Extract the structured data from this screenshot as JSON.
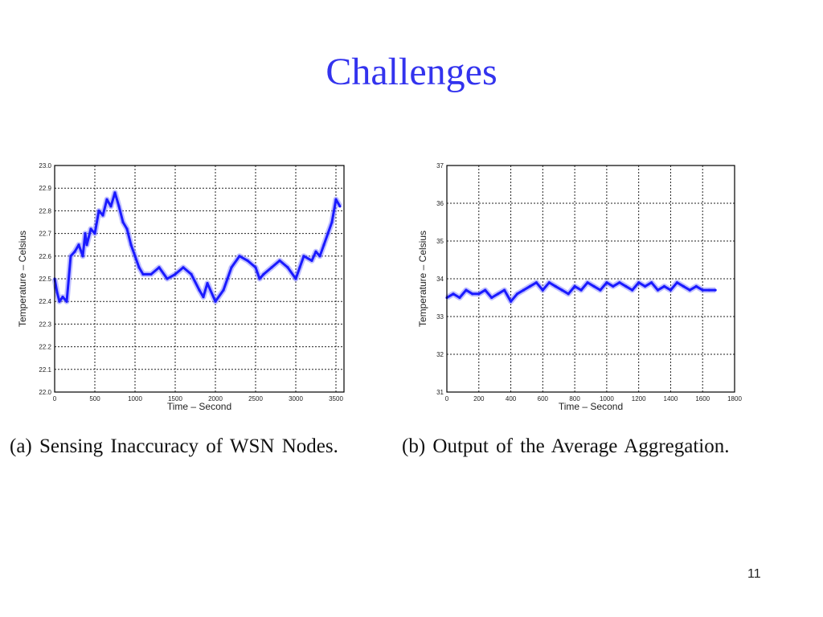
{
  "slide": {
    "title": "Challenges",
    "page_number": "11",
    "title_color": "#3333ee",
    "line_color": "#1a1aff",
    "light_line_color": "#8c8cff"
  },
  "chart_data": [
    {
      "type": "line",
      "caption": "(a) Sensing Inaccuracy of WSN Nodes.",
      "xlabel": "Time – Second",
      "ylabel": "Temperature – Celsius",
      "xlim": [
        0,
        3600
      ],
      "ylim": [
        22,
        23
      ],
      "xticks": [
        0,
        500,
        1000,
        1500,
        2000,
        2500,
        3000,
        3500
      ],
      "yticks": [
        22,
        22.1,
        22.2,
        22.3,
        22.4,
        22.5,
        22.6,
        22.7,
        22.8,
        22.9,
        23
      ],
      "grid": true,
      "series": [
        {
          "x": [
            0,
            30,
            60,
            100,
            150,
            200,
            250,
            300,
            350,
            380,
            400,
            450,
            500,
            550,
            600,
            650,
            700,
            750,
            800,
            850,
            900,
            950,
            1000,
            1050,
            1100,
            1200,
            1300,
            1400,
            1500,
            1600,
            1700,
            1800,
            1850,
            1900,
            2000,
            2100,
            2150,
            2200,
            2300,
            2400,
            2500,
            2550,
            2600,
            2700,
            2800,
            2900,
            3000,
            3050,
            3100,
            3200,
            3250,
            3300,
            3350,
            3400,
            3450,
            3500,
            3550
          ],
          "y": [
            22.5,
            22.44,
            22.4,
            22.42,
            22.4,
            22.6,
            22.62,
            22.65,
            22.6,
            22.7,
            22.65,
            22.72,
            22.7,
            22.8,
            22.78,
            22.85,
            22.82,
            22.88,
            22.82,
            22.75,
            22.72,
            22.65,
            22.6,
            22.55,
            22.52,
            22.52,
            22.55,
            22.5,
            22.52,
            22.55,
            22.52,
            22.45,
            22.42,
            22.48,
            22.4,
            22.45,
            22.5,
            22.55,
            22.6,
            22.58,
            22.55,
            22.5,
            22.52,
            22.55,
            22.58,
            22.55,
            22.5,
            22.55,
            22.6,
            22.58,
            22.62,
            22.6,
            22.65,
            22.7,
            22.75,
            22.85,
            22.82
          ]
        }
      ]
    },
    {
      "type": "line",
      "caption": "(b) Output of the Average Aggregation.",
      "xlabel": "Time – Second",
      "ylabel": "Temperature – Celsius",
      "xlim": [
        0,
        1800
      ],
      "ylim": [
        31,
        37
      ],
      "xticks": [
        0,
        200,
        400,
        600,
        800,
        1000,
        1200,
        1400,
        1600,
        1800
      ],
      "yticks": [
        31,
        32,
        33,
        34,
        35,
        36,
        37
      ],
      "grid": true,
      "series": [
        {
          "x": [
            0,
            40,
            80,
            120,
            160,
            200,
            240,
            280,
            320,
            360,
            400,
            440,
            480,
            520,
            560,
            600,
            640,
            680,
            720,
            760,
            800,
            840,
            880,
            920,
            960,
            1000,
            1040,
            1080,
            1120,
            1160,
            1200,
            1240,
            1280,
            1320,
            1360,
            1400,
            1440,
            1480,
            1520,
            1560,
            1600,
            1640,
            1680
          ],
          "y": [
            33.5,
            33.6,
            33.5,
            33.7,
            33.6,
            33.6,
            33.7,
            33.5,
            33.6,
            33.7,
            33.4,
            33.6,
            33.7,
            33.8,
            33.9,
            33.7,
            33.9,
            33.8,
            33.7,
            33.6,
            33.8,
            33.7,
            33.9,
            33.8,
            33.7,
            33.9,
            33.8,
            33.9,
            33.8,
            33.7,
            33.9,
            33.8,
            33.9,
            33.7,
            33.8,
            33.7,
            33.9,
            33.8,
            33.7,
            33.8,
            33.7,
            33.7,
            33.7
          ]
        }
      ]
    }
  ]
}
